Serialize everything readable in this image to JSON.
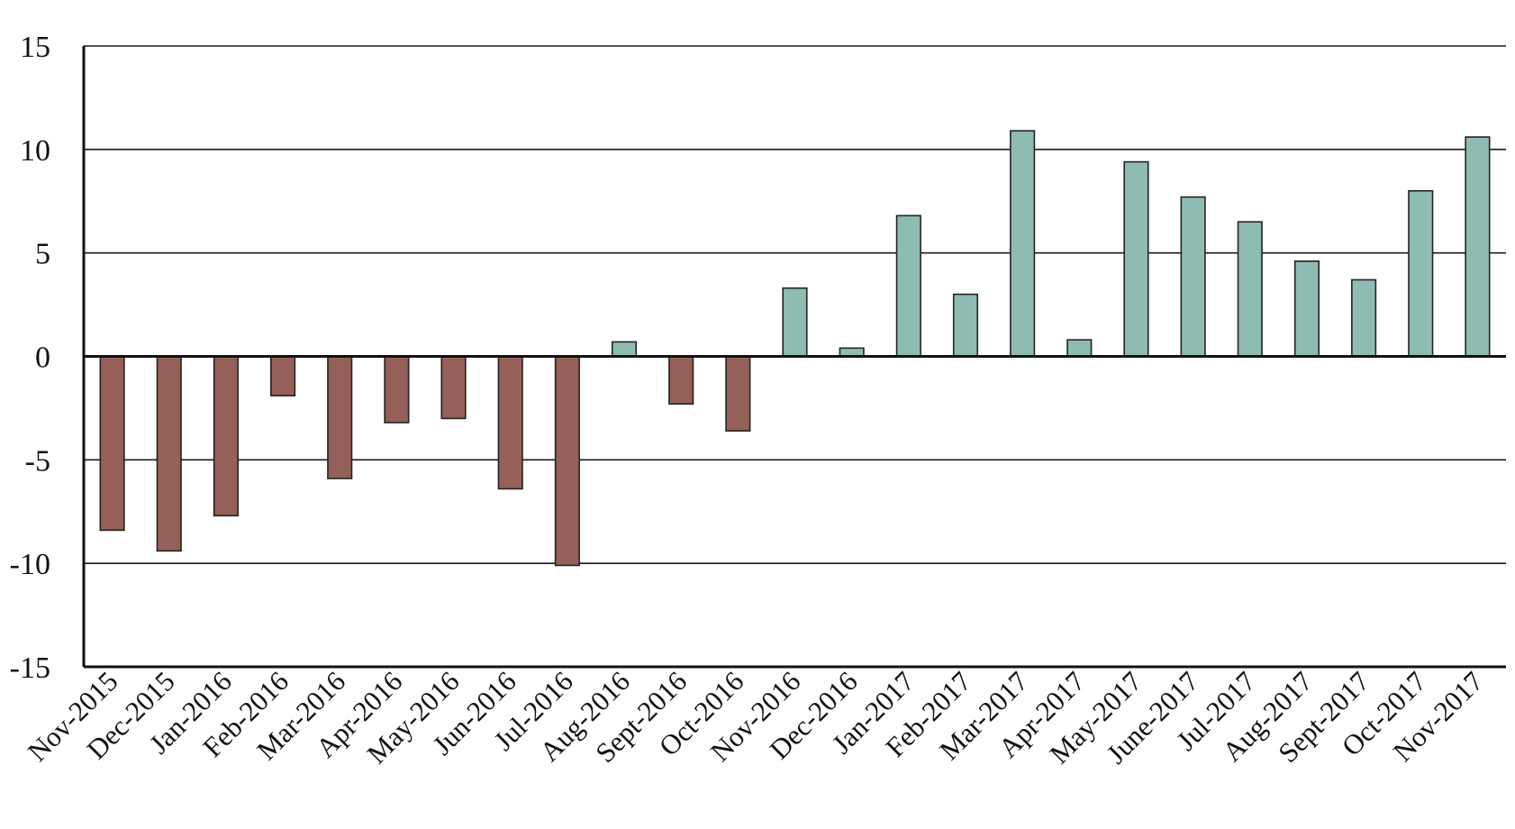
{
  "chart_data": {
    "type": "bar",
    "title": "",
    "xlabel": "",
    "ylabel": "",
    "ylim": [
      -15,
      15
    ],
    "yticks": [
      15,
      10,
      5,
      0,
      -5,
      -10,
      -15
    ],
    "grid": true,
    "legend": "none",
    "colors": {
      "positive": "#8fbcb2",
      "negative": "#946058"
    },
    "categories": [
      "Nov-2015",
      "Dec-2015",
      "Jan-2016",
      "Feb-2016",
      "Mar-2016",
      "Apr-2016",
      "May-2016",
      "Jun-2016",
      "Jul-2016",
      "Aug-2016",
      "Sept-2016",
      "Oct-2016",
      "Nov-2016",
      "Dec-2016",
      "Jan-2017",
      "Feb-2017",
      "Mar-2017",
      "Apr-2017",
      "May-2017",
      "June-2017",
      "Jul-2017",
      "Aug-2017",
      "Sept-2017",
      "Oct-2017",
      "Nov-2017"
    ],
    "values": [
      -8.4,
      -9.4,
      -7.7,
      -1.9,
      -5.9,
      -3.2,
      -3.0,
      -6.4,
      -10.1,
      0.7,
      -2.3,
      -3.6,
      3.3,
      0.4,
      6.8,
      3.0,
      10.9,
      0.8,
      9.4,
      7.7,
      6.5,
      4.6,
      3.7,
      8.0,
      10.6
    ]
  }
}
